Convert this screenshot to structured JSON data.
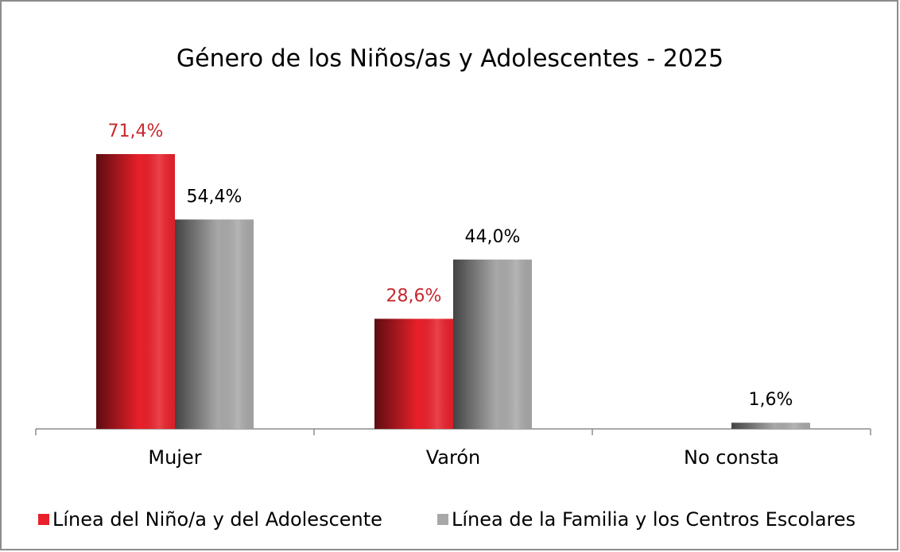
{
  "chart_data": {
    "type": "bar",
    "title": "Género de los Niños/as y Adolescentes - 2025",
    "categories": [
      "Mujer",
      "Varón",
      "No consta"
    ],
    "series": [
      {
        "name": "Línea del Niño/a y del Adolescente",
        "color": "#e8202a",
        "values": [
          71.4,
          28.6,
          null
        ],
        "value_labels": [
          "71,4%",
          "28,6%",
          null
        ],
        "label_color": "#c8282e"
      },
      {
        "name": "Línea de la Familia y los Centros Escolares",
        "color": "#a8a8a8",
        "values": [
          54.4,
          44.0,
          1.6
        ],
        "value_labels": [
          "54,4%",
          "44,0%",
          "1,6%"
        ],
        "label_color": "#000000"
      }
    ],
    "legend": "bottom"
  }
}
